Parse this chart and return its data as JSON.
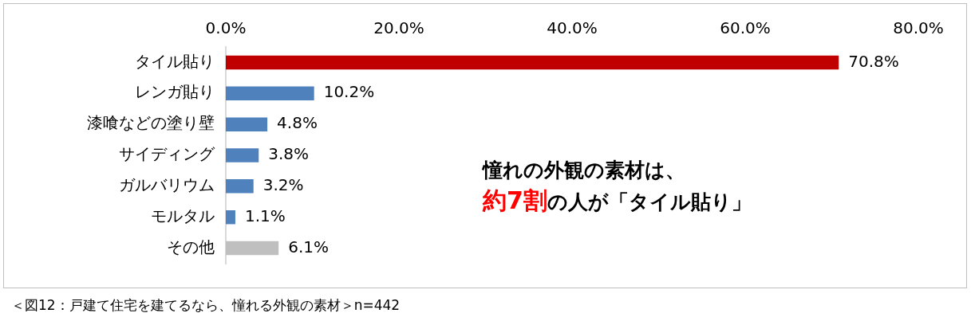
{
  "chart_data": {
    "type": "bar",
    "orientation": "horizontal",
    "categories": [
      "タイル貼り",
      "レンガ貼り",
      "漆喰などの塗り壁",
      "サイディング",
      "ガルバリウム",
      "モルタル",
      "その他"
    ],
    "values": [
      70.8,
      10.2,
      4.8,
      3.8,
      3.2,
      1.1,
      6.1
    ],
    "colors": [
      "#c00000",
      "#4f81bd",
      "#4f81bd",
      "#4f81bd",
      "#4f81bd",
      "#4f81bd",
      "#bfbfbf"
    ],
    "value_labels": [
      "70.8%",
      "10.2%",
      "4.8%",
      "3.8%",
      "3.2%",
      "1.1%",
      "6.1%"
    ],
    "xlim": [
      0,
      80
    ],
    "xticks": [
      {
        "value": 0,
        "label": "0.0%"
      },
      {
        "value": 20,
        "label": "20.0%"
      },
      {
        "value": 40,
        "label": "40.0%"
      },
      {
        "value": 60,
        "label": "60.0%"
      },
      {
        "value": 80,
        "label": "80.0%"
      }
    ],
    "grid": false,
    "legend": false,
    "annotations": [
      "憧れの外観の素材は、",
      "約7割",
      "の人が「タイル貼り」",
      "＜図12：戸建て住宅を建てるなら、憧れる外観の素材＞n=442"
    ]
  }
}
